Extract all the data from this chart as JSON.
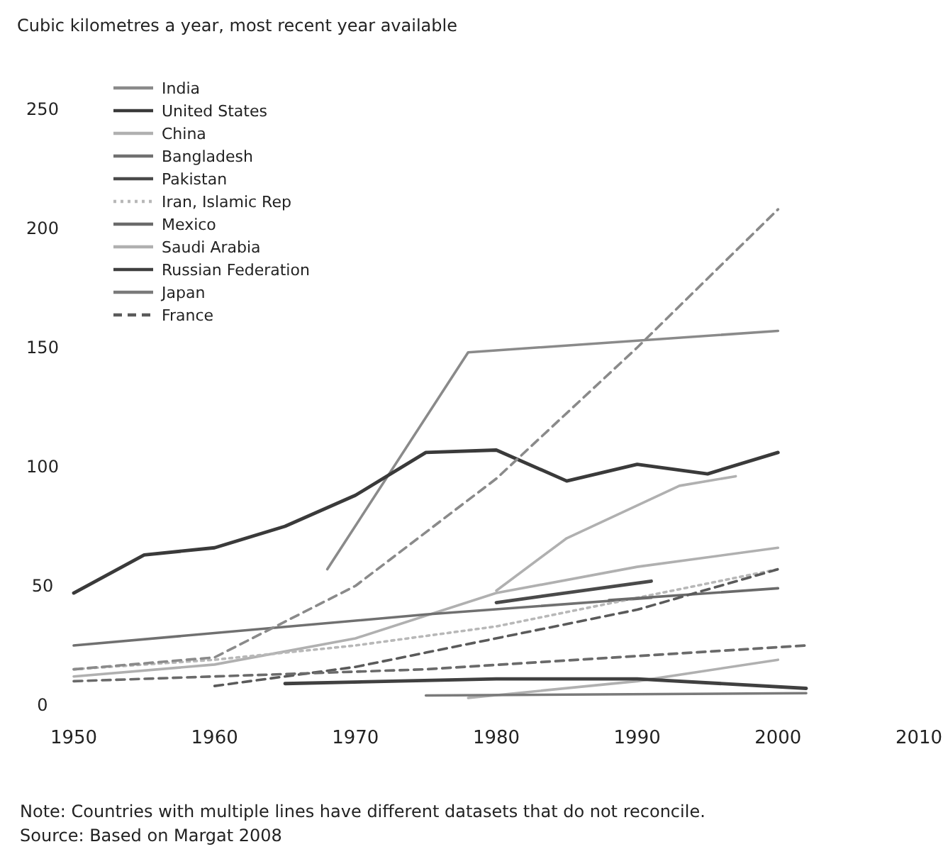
{
  "chart_data": {
    "type": "line",
    "title": "Cubic kilometres a year, most recent year available",
    "xlim": [
      1950,
      2010
    ],
    "xticks": [
      1950,
      1960,
      1970,
      1980,
      1990,
      2000,
      2010
    ],
    "ylim": [
      0,
      250
    ],
    "yticks": [
      0,
      50,
      100,
      150,
      200,
      250
    ],
    "grid": false,
    "legend": "top left",
    "annotations": [
      "Note: Countries with multiple lines have different datasets that do not reconcile.",
      "Source: Based on Margat 2008"
    ],
    "series": [
      {
        "name": "India",
        "color": "#8a8a8a",
        "line_style": "solid",
        "x": [
          1968,
          1978,
          2000
        ],
        "values": [
          57,
          148,
          157
        ]
      },
      {
        "name": "United States",
        "color": "#3a3a3a",
        "line_style": "solid",
        "x": [
          1950,
          1955,
          1960,
          1965,
          1970,
          1975,
          1980,
          1985,
          1990,
          1995,
          2000
        ],
        "values": [
          47,
          63,
          66,
          75,
          88,
          106,
          107,
          94,
          101,
          97,
          106
        ]
      },
      {
        "name": "China",
        "color": "#b0b0b0",
        "line_style": "solid",
        "x": [
          1950,
          1960,
          1970,
          1980,
          1990,
          2000
        ],
        "values": [
          12,
          17,
          28,
          47,
          58,
          66
        ]
      },
      {
        "name": "Bangladesh",
        "color": "#707070",
        "line_style": "solid",
        "x": [
          1950,
          1975,
          1991
        ],
        "values": [
          25,
          38,
          45
        ]
      },
      {
        "name": "Pakistan",
        "color": "#4a4a4a",
        "line_style": "solid",
        "x": [
          1980,
          1991
        ],
        "values": [
          43,
          52
        ]
      },
      {
        "name": "Iran, Islamic Rep",
        "color": "#b8b8b8",
        "line_style": "dotted",
        "x": [
          1950,
          1960,
          1970,
          1980,
          1990,
          2000
        ],
        "values": [
          15,
          19,
          25,
          33,
          45,
          57
        ]
      },
      {
        "name": "Mexico",
        "color": "#6a6a6a",
        "line_style": "solid",
        "x": [
          1988,
          2000
        ],
        "values": [
          44,
          49
        ]
      },
      {
        "name": "Saudi Arabia",
        "color": "#b0b0b0",
        "line_style": "solid",
        "x": [
          1978,
          1990,
          2000
        ],
        "values": [
          3,
          10,
          19
        ]
      },
      {
        "name": "Russian Federation",
        "color": "#404040",
        "line_style": "solid",
        "x": [
          1965,
          1980,
          1990,
          2002
        ],
        "values": [
          9,
          11,
          11,
          7
        ]
      },
      {
        "name": "Japan",
        "color": "#7a7a7a",
        "line_style": "solid",
        "x": [
          1975,
          2002
        ],
        "values": [
          4,
          5
        ]
      },
      {
        "name": "France",
        "color": "#5a5a5a",
        "line_style": "dashed",
        "x": [
          1960,
          1970,
          1975,
          1990,
          2000
        ],
        "values": [
          8,
          16,
          22,
          40,
          57
        ]
      },
      {
        "color": "#8a8a8a",
        "line_style": "dashed",
        "x": [
          1950,
          1960,
          1970,
          1980,
          1990,
          2000
        ],
        "values": [
          15,
          20,
          50,
          95,
          150,
          208
        ]
      },
      {
        "color": "#b0b0b0",
        "line_style": "solid",
        "x": [
          1980,
          1985,
          1993,
          1997
        ],
        "values": [
          48,
          70,
          92,
          96
        ]
      },
      {
        "color": "#6a6a6a",
        "line_style": "dashed",
        "x": [
          1950,
          1975,
          2002
        ],
        "values": [
          10,
          15,
          25
        ]
      }
    ]
  }
}
